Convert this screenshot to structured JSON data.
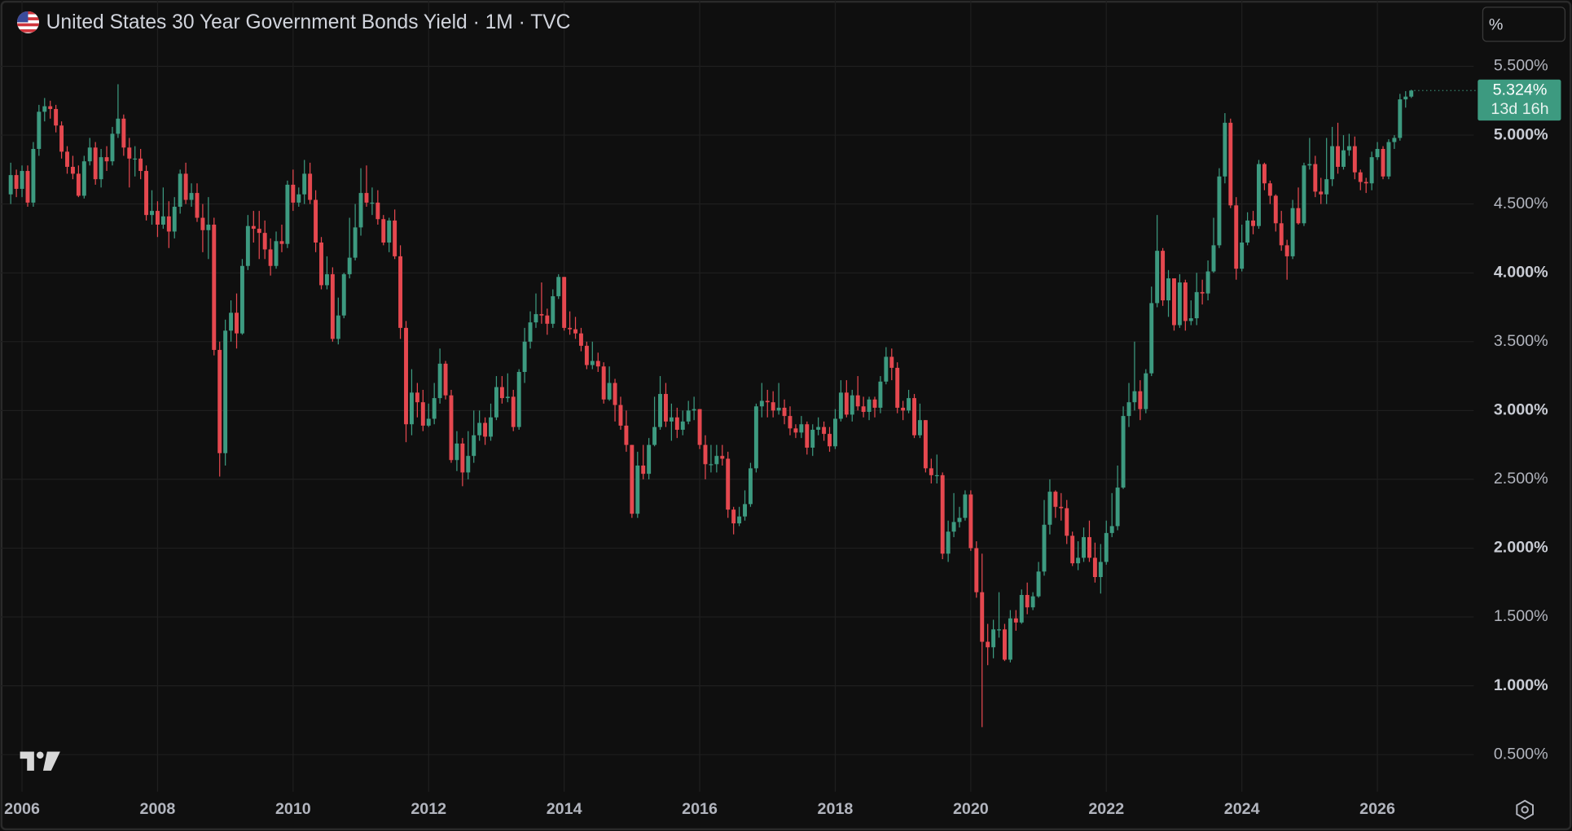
{
  "chart_data": {
    "type": "candlestick",
    "title": "United States 30 Year Government Bonds Yield · 1M · TVC",
    "scale_label": "%",
    "last_price_label": "5.324%",
    "countdown": "13d 16h",
    "up_color": "#3d9a80",
    "down_color": "#e5484f",
    "grid": true,
    "ylim": [
      0.231,
      5.98
    ],
    "yticks": [
      {
        "value": 0.5,
        "label": "0.500%"
      },
      {
        "value": 1,
        "label": "1.000%"
      },
      {
        "value": 1.5,
        "label": "1.500%"
      },
      {
        "value": 2,
        "label": "2.000%"
      },
      {
        "value": 2.5,
        "label": "2.500%"
      },
      {
        "value": 3,
        "label": "3.000%"
      },
      {
        "value": 3.5,
        "label": "3.500%"
      },
      {
        "value": 4,
        "label": "4.000%"
      },
      {
        "value": 4.5,
        "label": "4.500%"
      },
      {
        "value": 5,
        "label": "5.000%"
      },
      {
        "value": 5.5,
        "label": "5.500%"
      }
    ],
    "categories": [
      null,
      null,
      "2006",
      null,
      null,
      null,
      null,
      null,
      null,
      null,
      null,
      null,
      null,
      null,
      null,
      null,
      null,
      null,
      null,
      null,
      null,
      null,
      null,
      null,
      null,
      null,
      "2008",
      null,
      null,
      null,
      null,
      null,
      null,
      null,
      null,
      null,
      null,
      null,
      null,
      null,
      null,
      null,
      null,
      null,
      null,
      null,
      null,
      null,
      null,
      null,
      "2010",
      null,
      null,
      null,
      null,
      null,
      null,
      null,
      null,
      null,
      null,
      null,
      null,
      null,
      null,
      null,
      null,
      null,
      null,
      null,
      null,
      null,
      null,
      null,
      "2012",
      null,
      null,
      null,
      null,
      null,
      null,
      null,
      null,
      null,
      null,
      null,
      null,
      null,
      null,
      null,
      null,
      null,
      null,
      null,
      null,
      null,
      null,
      null,
      "2014",
      null,
      null,
      null,
      null,
      null,
      null,
      null,
      null,
      null,
      null,
      null,
      null,
      null,
      null,
      null,
      null,
      null,
      null,
      null,
      null,
      null,
      null,
      null,
      "2016",
      null,
      null,
      null,
      null,
      null,
      null,
      null,
      null,
      null,
      null,
      null,
      null,
      null,
      null,
      null,
      null,
      null,
      null,
      null,
      null,
      null,
      null,
      null,
      "2018",
      null,
      null,
      null,
      null,
      null,
      null,
      null,
      null,
      null,
      null,
      null,
      null,
      null,
      null,
      null,
      null,
      null,
      null,
      null,
      null,
      null,
      null,
      null,
      "2020",
      null,
      null,
      null,
      null,
      null,
      null,
      null,
      null,
      null,
      null,
      null,
      null,
      null,
      null,
      null,
      null,
      null,
      null,
      null,
      null,
      null,
      null,
      null,
      "2022",
      null,
      null,
      null,
      null,
      null,
      null,
      null,
      null,
      null,
      null,
      null,
      null,
      null,
      null,
      null,
      null,
      null,
      null,
      null,
      null,
      null,
      null,
      null,
      "2024",
      null,
      null,
      null,
      null,
      null,
      null,
      null,
      null,
      null,
      null,
      null,
      null,
      null,
      null,
      null,
      null,
      null,
      null,
      null,
      null,
      null,
      null,
      null,
      "2026",
      null,
      null,
      null,
      null,
      null,
      null
    ],
    "open": [
      4.57,
      4.71,
      4.61,
      4.74,
      4.51,
      4.9,
      5.17,
      5.21,
      5.19,
      5.07,
      4.88,
      4.77,
      4.72,
      4.56,
      4.81,
      4.91,
      4.68,
      4.84,
      4.81,
      5.01,
      5.12,
      4.91,
      4.83,
      4.83,
      4.74,
      4.42,
      4.45,
      4.35,
      4.41,
      4.3,
      4.48,
      4.72,
      4.53,
      4.58,
      4.4,
      4.31,
      4.35,
      3.44,
      2.69,
      3.58,
      3.71,
      3.56,
      4.05,
      4.34,
      4.32,
      4.29,
      4.17,
      4.05,
      4.23,
      4.21,
      4.64,
      4.51,
      4.57,
      4.72,
      4.53,
      4.22,
      3.91,
      3.99,
      3.52,
      3.69,
      3.99,
      4.11,
      4.33,
      4.58,
      4.51,
      4.51,
      4.39,
      4.22,
      4.38,
      4.12,
      3.6,
      2.9,
      3.13,
      3.06,
      2.89,
      2.94,
      3.09,
      3.34,
      3.11,
      2.64,
      2.76,
      2.55,
      2.67,
      2.82,
      2.91,
      2.81,
      2.95,
      3.17,
      3.09,
      3.1,
      2.88,
      3.28,
      3.5,
      3.64,
      3.7,
      3.69,
      3.63,
      3.83,
      3.97,
      3.6,
      3.59,
      3.56,
      3.47,
      3.33,
      3.36,
      3.32,
      3.08,
      3.2,
      3.04,
      2.89,
      2.75,
      2.25,
      2.6,
      2.54,
      2.75,
      2.88,
      3.12,
      2.92,
      2.95,
      2.86,
      2.92,
      3.0,
      3.01,
      2.75,
      2.61,
      2.61,
      2.67,
      2.65,
      2.28,
      2.18,
      2.23,
      2.32,
      2.58,
      3.03,
      3.07,
      3.06,
      3.0,
      3.02,
      2.96,
      2.87,
      2.84,
      2.9,
      2.73,
      2.86,
      2.88,
      2.83,
      2.74,
      2.94,
      3.13,
      2.97,
      3.11,
      3.03,
      2.99,
      3.08,
      3.02,
      3.21,
      3.39,
      3.31,
      3.02,
      3.0,
      3.09,
      2.82,
      2.93,
      2.58,
      2.53,
      2.53,
      1.96,
      2.12,
      2.19,
      2.22,
      2.39,
      2.0,
      1.68,
      1.32,
      1.28,
      1.41,
      1.41,
      1.19,
      1.49,
      1.46,
      1.66,
      1.57,
      1.65,
      1.83,
      2.17,
      2.41,
      2.3,
      2.29,
      2.09,
      1.89,
      1.93,
      2.08,
      1.93,
      1.79,
      1.9,
      2.11,
      2.16,
      2.44,
      2.96,
      3.06,
      3.14,
      3.01,
      3.27,
      3.78,
      4.16,
      3.8,
      3.96,
      3.62,
      3.93,
      3.65,
      3.67,
      3.86,
      3.85,
      4.01,
      4.2,
      4.7,
      5.09,
      4.49,
      4.03,
      4.22,
      4.38,
      4.34,
      4.79,
      4.65,
      4.56,
      4.36,
      4.2,
      4.12,
      4.47,
      4.36,
      4.78,
      4.79,
      4.59,
      4.57,
      4.68,
      4.92,
      4.77,
      4.89,
      4.92,
      4.73,
      4.66,
      4.65,
      4.84,
      4.9,
      4.7,
      4.95,
      4.98,
      5.26,
      5.28
    ],
    "high": [
      4.8,
      4.75,
      4.78,
      4.78,
      4.95,
      5.22,
      5.27,
      5.25,
      5.22,
      5.1,
      4.92,
      4.85,
      4.78,
      4.85,
      4.98,
      4.95,
      4.9,
      4.92,
      5.06,
      5.37,
      5.15,
      4.98,
      4.92,
      4.9,
      4.78,
      4.6,
      4.52,
      4.62,
      4.52,
      4.55,
      4.75,
      4.8,
      4.65,
      4.65,
      4.5,
      4.55,
      4.4,
      3.5,
      3.66,
      3.8,
      3.85,
      4.1,
      4.42,
      4.45,
      4.45,
      4.38,
      4.25,
      4.3,
      4.35,
      4.67,
      4.75,
      4.62,
      4.82,
      4.8,
      4.6,
      4.26,
      4.12,
      4.04,
      3.82,
      4.0,
      4.4,
      4.5,
      4.76,
      4.78,
      4.62,
      4.6,
      4.42,
      4.4,
      4.46,
      4.2,
      3.65,
      3.3,
      3.2,
      3.15,
      3.05,
      3.2,
      3.45,
      3.36,
      3.15,
      2.85,
      2.8,
      2.85,
      3.0,
      3.0,
      2.95,
      3.05,
      3.25,
      3.25,
      3.27,
      3.15,
      3.3,
      3.6,
      3.72,
      3.85,
      3.93,
      3.74,
      3.88,
      3.99,
      3.97,
      3.72,
      3.68,
      3.6,
      3.5,
      3.5,
      3.42,
      3.35,
      3.32,
      3.23,
      3.1,
      3.0,
      2.75,
      2.7,
      2.75,
      2.8,
      3.1,
      3.25,
      3.2,
      3.05,
      3.02,
      3.0,
      3.07,
      3.1,
      3.01,
      2.82,
      2.75,
      2.75,
      2.75,
      2.7,
      2.3,
      2.3,
      2.42,
      2.62,
      3.05,
      3.2,
      3.15,
      3.14,
      3.2,
      3.08,
      3.03,
      2.9,
      2.96,
      2.92,
      2.9,
      2.95,
      2.92,
      2.88,
      3.01,
      3.22,
      3.22,
      3.15,
      3.25,
      3.1,
      3.1,
      3.1,
      3.25,
      3.46,
      3.45,
      3.35,
      3.07,
      3.15,
      3.12,
      3.05,
      2.93,
      2.65,
      2.68,
      2.55,
      2.2,
      2.4,
      2.3,
      2.42,
      2.42,
      2.05,
      1.96,
      1.45,
      1.48,
      1.68,
      1.45,
      1.55,
      1.55,
      1.7,
      1.75,
      1.68,
      1.9,
      2.35,
      2.5,
      2.42,
      2.4,
      2.35,
      2.12,
      2.05,
      2.15,
      2.2,
      2.04,
      2.03,
      2.2,
      2.4,
      2.6,
      3.03,
      3.2,
      3.5,
      3.22,
      3.3,
      3.9,
      4.42,
      4.18,
      4.02,
      3.95,
      3.99,
      3.95,
      3.8,
      4.0,
      3.95,
      4.09,
      4.4,
      4.76,
      5.16,
      5.12,
      4.55,
      4.35,
      4.44,
      4.45,
      4.82,
      4.8,
      4.67,
      4.57,
      4.45,
      4.24,
      4.53,
      4.62,
      4.8,
      4.98,
      4.85,
      4.69,
      4.98,
      5.06,
      5.09,
      5.0,
      5.01,
      4.99,
      4.75,
      4.69,
      4.88,
      4.95,
      4.92,
      4.97,
      5.0,
      5.3,
      5.32,
      5.33
    ],
    "low": [
      4.5,
      4.55,
      4.55,
      4.48,
      4.48,
      4.85,
      5.1,
      5.12,
      5.02,
      4.83,
      4.72,
      4.68,
      4.55,
      4.54,
      4.78,
      4.64,
      4.62,
      4.74,
      4.78,
      4.98,
      4.85,
      4.62,
      4.7,
      4.68,
      4.38,
      4.35,
      4.26,
      4.32,
      4.18,
      4.25,
      4.43,
      4.5,
      4.48,
      4.37,
      4.15,
      4.1,
      3.4,
      2.52,
      2.6,
      3.5,
      3.45,
      3.55,
      4.02,
      4.22,
      4.1,
      4.1,
      3.98,
      4.03,
      4.15,
      4.18,
      4.45,
      4.48,
      4.5,
      4.5,
      4.15,
      3.88,
      3.88,
      3.5,
      3.48,
      3.67,
      3.96,
      4.09,
      4.27,
      4.48,
      4.42,
      4.35,
      4.2,
      4.15,
      4.1,
      3.52,
      2.77,
      2.82,
      2.95,
      2.85,
      2.88,
      2.9,
      3.05,
      3.08,
      2.62,
      2.56,
      2.45,
      2.5,
      2.62,
      2.78,
      2.75,
      2.78,
      2.93,
      3.05,
      3.06,
      2.85,
      2.86,
      3.2,
      3.45,
      3.6,
      3.63,
      3.55,
      3.6,
      3.81,
      3.58,
      3.55,
      3.52,
      3.43,
      3.3,
      3.3,
      3.28,
      3.05,
      3.07,
      2.92,
      2.86,
      2.7,
      2.22,
      2.22,
      2.5,
      2.5,
      2.74,
      2.86,
      2.88,
      2.78,
      2.8,
      2.82,
      2.9,
      2.93,
      2.72,
      2.5,
      2.55,
      2.55,
      2.6,
      2.22,
      2.1,
      2.16,
      2.2,
      2.3,
      2.55,
      2.95,
      2.95,
      2.95,
      2.97,
      2.9,
      2.82,
      2.8,
      2.8,
      2.68,
      2.67,
      2.82,
      2.78,
      2.7,
      2.72,
      2.92,
      2.95,
      2.92,
      3.0,
      2.95,
      2.93,
      2.95,
      2.98,
      3.19,
      3.22,
      2.98,
      2.93,
      2.98,
      2.8,
      2.8,
      2.55,
      2.47,
      2.47,
      1.92,
      1.9,
      2.08,
      2.15,
      2.2,
      1.98,
      1.64,
      0.7,
      1.15,
      1.2,
      1.35,
      1.18,
      1.17,
      1.4,
      1.45,
      1.52,
      1.55,
      1.64,
      1.8,
      2.1,
      2.22,
      2.2,
      2.03,
      1.87,
      1.84,
      1.9,
      1.9,
      1.75,
      1.67,
      1.88,
      2.08,
      2.13,
      2.43,
      2.88,
      3.0,
      2.93,
      2.98,
      3.25,
      3.75,
      3.76,
      3.68,
      3.58,
      3.6,
      3.58,
      3.62,
      3.62,
      3.77,
      3.8,
      4.0,
      4.18,
      4.65,
      4.47,
      3.95,
      4.01,
      4.2,
      4.28,
      4.32,
      4.6,
      4.5,
      4.3,
      4.16,
      3.95,
      4.1,
      4.35,
      4.34,
      4.75,
      4.55,
      4.5,
      4.5,
      4.63,
      4.72,
      4.75,
      4.85,
      4.68,
      4.6,
      4.58,
      4.6,
      4.82,
      4.68,
      4.68,
      4.9,
      4.96,
      5.2,
      5.27
    ],
    "close": [
      4.71,
      4.61,
      4.74,
      4.51,
      4.9,
      5.17,
      5.21,
      5.19,
      5.07,
      4.88,
      4.77,
      4.72,
      4.56,
      4.81,
      4.91,
      4.68,
      4.84,
      4.81,
      5.01,
      5.12,
      4.91,
      4.83,
      4.83,
      4.74,
      4.42,
      4.45,
      4.35,
      4.41,
      4.3,
      4.48,
      4.72,
      4.53,
      4.58,
      4.4,
      4.31,
      4.35,
      3.44,
      2.69,
      3.58,
      3.71,
      3.56,
      4.05,
      4.34,
      4.32,
      4.29,
      4.17,
      4.05,
      4.23,
      4.21,
      4.64,
      4.51,
      4.57,
      4.72,
      4.53,
      4.22,
      3.91,
      3.99,
      3.52,
      3.69,
      3.99,
      4.11,
      4.33,
      4.58,
      4.51,
      4.51,
      4.39,
      4.22,
      4.38,
      4.12,
      3.6,
      2.9,
      3.13,
      3.06,
      2.89,
      2.94,
      3.09,
      3.34,
      3.11,
      2.64,
      2.76,
      2.55,
      2.67,
      2.82,
      2.91,
      2.81,
      2.95,
      3.17,
      3.09,
      3.1,
      2.88,
      3.28,
      3.5,
      3.64,
      3.7,
      3.69,
      3.63,
      3.83,
      3.97,
      3.6,
      3.59,
      3.56,
      3.47,
      3.33,
      3.36,
      3.32,
      3.08,
      3.2,
      3.04,
      2.89,
      2.75,
      2.25,
      2.6,
      2.54,
      2.75,
      2.88,
      3.12,
      2.92,
      2.95,
      2.86,
      2.92,
      3.0,
      3.01,
      2.75,
      2.61,
      2.61,
      2.67,
      2.65,
      2.28,
      2.18,
      2.23,
      2.32,
      2.58,
      3.03,
      3.07,
      3.06,
      3.0,
      3.02,
      2.96,
      2.87,
      2.84,
      2.9,
      2.73,
      2.86,
      2.88,
      2.83,
      2.74,
      2.94,
      3.13,
      2.97,
      3.11,
      3.03,
      2.99,
      3.08,
      3.02,
      3.21,
      3.39,
      3.31,
      3.02,
      3.0,
      3.09,
      2.82,
      2.93,
      2.58,
      2.53,
      2.53,
      1.96,
      2.12,
      2.19,
      2.22,
      2.39,
      2.0,
      1.68,
      1.32,
      1.28,
      1.41,
      1.41,
      1.19,
      1.49,
      1.46,
      1.66,
      1.57,
      1.65,
      1.83,
      2.17,
      2.41,
      2.3,
      2.29,
      2.09,
      1.89,
      1.93,
      2.08,
      1.93,
      1.79,
      1.9,
      2.11,
      2.16,
      2.44,
      2.96,
      3.06,
      3.14,
      3.01,
      3.27,
      3.78,
      4.16,
      3.8,
      3.96,
      3.62,
      3.93,
      3.65,
      3.67,
      3.86,
      3.85,
      4.01,
      4.2,
      4.7,
      5.09,
      4.49,
      4.03,
      4.22,
      4.38,
      4.34,
      4.79,
      4.65,
      4.56,
      4.36,
      4.2,
      4.12,
      4.47,
      4.36,
      4.78,
      4.79,
      4.59,
      4.57,
      4.68,
      4.92,
      4.77,
      4.89,
      4.92,
      4.73,
      4.66,
      4.65,
      4.84,
      4.9,
      4.7,
      4.95,
      4.98,
      5.26,
      5.28,
      5.324
    ]
  }
}
